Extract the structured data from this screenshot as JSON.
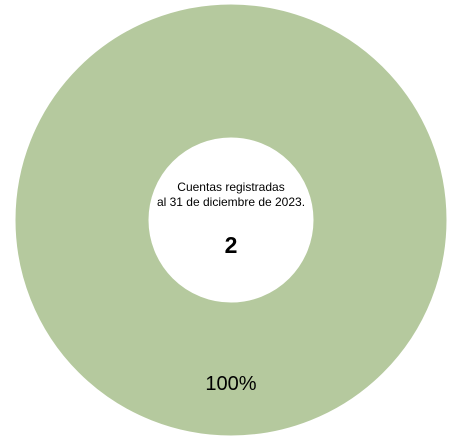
{
  "chart_data": {
    "type": "pie",
    "variant": "donut",
    "slices": [
      {
        "value": 100,
        "label": "100%",
        "color": "#b5c99e"
      }
    ],
    "center_text": {
      "caption_lines": [
        "Cuentas registradas",
        "al 31 de diciembre de 2023."
      ],
      "value": "2"
    },
    "border_color": "#ffffff",
    "legend": "none"
  }
}
